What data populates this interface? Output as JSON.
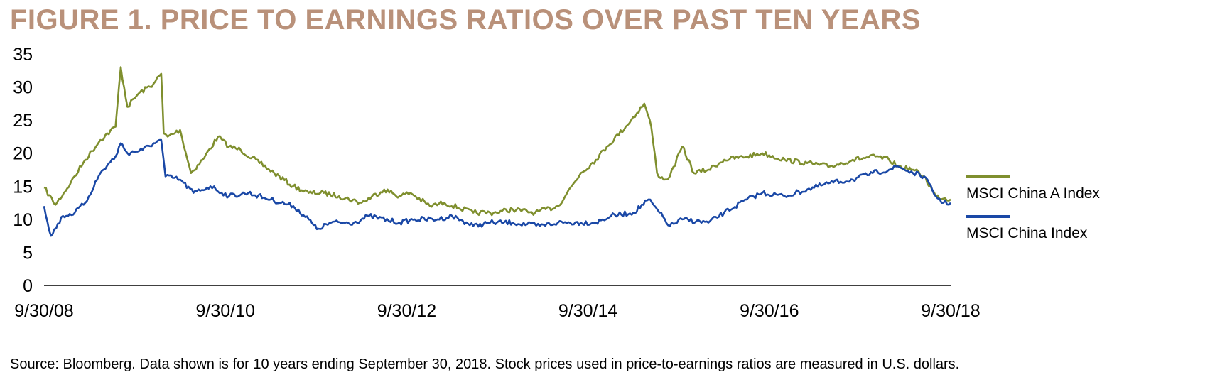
{
  "figure": {
    "title": "FIGURE 1. PRICE TO EARNINGS RATIOS OVER PAST TEN YEARS",
    "title_color": "#B9917A",
    "source_note": "Source: Bloomberg. Data shown is for 10 years ending September 30, 2018. Stock prices used in price-to-earnings ratios are measured in U.S. dollars."
  },
  "chart_data": {
    "type": "line",
    "title": "",
    "xlabel": "",
    "ylabel": "",
    "ylim": [
      0,
      35
    ],
    "xlim": [
      "2008-09-30",
      "2018-09-30"
    ],
    "yticks": [
      0,
      5,
      10,
      15,
      20,
      25,
      30,
      35
    ],
    "xticks": [
      "9/30/08",
      "9/30/10",
      "9/30/12",
      "9/30/14",
      "9/30/16",
      "9/30/18"
    ],
    "grid": false,
    "legend_position": "right",
    "series": [
      {
        "name": "MSCI China A Index",
        "color": "#7F8F2E",
        "x": [
          "2008-09-30",
          "2008-11-15",
          "2009-01-15",
          "2009-03-15",
          "2009-05-15",
          "2009-07-15",
          "2009-08-05",
          "2009-09-01",
          "2009-10-15",
          "2009-12-15",
          "2010-01-15",
          "2010-01-25",
          "2010-02-10",
          "2010-04-01",
          "2010-05-15",
          "2010-07-01",
          "2010-09-01",
          "2010-10-15",
          "2010-12-01",
          "2011-02-15",
          "2011-04-15",
          "2011-06-30",
          "2011-09-01",
          "2011-11-01",
          "2012-01-01",
          "2012-04-01",
          "2012-07-01",
          "2012-09-01",
          "2012-10-15",
          "2013-01-01",
          "2013-03-01",
          "2013-06-25",
          "2013-09-15",
          "2013-12-01",
          "2014-03-01",
          "2014-06-01",
          "2014-09-01",
          "2014-11-01",
          "2014-12-15",
          "2015-03-01",
          "2015-05-15",
          "2015-06-12",
          "2015-07-05",
          "2015-08-01",
          "2015-08-26",
          "2015-10-15",
          "2015-12-01",
          "2016-01-28",
          "2016-04-01",
          "2016-07-01",
          "2016-09-01",
          "2016-12-01",
          "2017-03-01",
          "2017-06-01",
          "2017-09-01",
          "2017-12-01",
          "2018-01-25",
          "2018-03-01",
          "2018-05-01",
          "2018-06-15",
          "2018-08-01",
          "2018-09-30"
        ],
        "values": [
          14.8,
          12.2,
          15.5,
          19.0,
          22.0,
          24.0,
          33.0,
          27.0,
          29.0,
          30.5,
          32.0,
          23.0,
          22.5,
          23.5,
          17.0,
          19.0,
          22.5,
          21.0,
          20.5,
          18.5,
          17.0,
          15.0,
          14.0,
          14.0,
          13.5,
          12.5,
          14.5,
          13.5,
          14.0,
          12.0,
          12.5,
          11.0,
          11.0,
          11.5,
          11.0,
          12.0,
          17.0,
          19.0,
          21.0,
          24.0,
          27.5,
          24.0,
          17.0,
          16.0,
          16.5,
          21.0,
          17.0,
          17.5,
          19.0,
          19.5,
          20.0,
          19.0,
          18.5,
          18.0,
          19.0,
          19.5,
          19.0,
          18.0,
          17.5,
          16.5,
          13.5,
          13.0
        ]
      },
      {
        "name": "MSCI China Index",
        "color": "#1A48A6",
        "x": [
          "2008-09-30",
          "2008-10-28",
          "2008-12-15",
          "2009-02-01",
          "2009-03-15",
          "2009-05-15",
          "2009-07-15",
          "2009-08-05",
          "2009-09-01",
          "2009-11-01",
          "2009-12-15",
          "2010-01-15",
          "2010-02-01",
          "2010-04-01",
          "2010-05-25",
          "2010-08-01",
          "2010-10-15",
          "2011-01-01",
          "2011-04-01",
          "2011-07-01",
          "2011-09-01",
          "2011-10-04",
          "2011-12-01",
          "2012-03-01",
          "2012-05-01",
          "2012-09-01",
          "2012-11-01",
          "2013-02-01",
          "2013-04-01",
          "2013-06-25",
          "2013-09-01",
          "2013-12-01",
          "2014-03-20",
          "2014-06-01",
          "2014-09-01",
          "2014-11-01",
          "2015-01-01",
          "2015-04-01",
          "2015-06-01",
          "2015-07-15",
          "2015-08-26",
          "2015-10-15",
          "2016-01-28",
          "2016-04-01",
          "2016-07-01",
          "2016-09-01",
          "2016-12-01",
          "2017-03-01",
          "2017-06-01",
          "2017-09-01",
          "2017-11-20",
          "2018-01-25",
          "2018-03-01",
          "2018-05-01",
          "2018-06-15",
          "2018-08-01",
          "2018-09-01",
          "2018-09-30"
        ],
        "values": [
          12.0,
          7.5,
          10.5,
          11.0,
          12.5,
          17.0,
          19.5,
          21.5,
          20.0,
          20.5,
          21.5,
          22.0,
          16.5,
          16.0,
          14.0,
          15.0,
          13.5,
          14.0,
          13.0,
          12.0,
          10.0,
          8.5,
          9.5,
          9.5,
          10.5,
          9.5,
          10.0,
          10.0,
          10.5,
          9.0,
          9.5,
          9.5,
          9.0,
          9.5,
          9.5,
          9.5,
          10.5,
          11.0,
          13.0,
          11.0,
          9.0,
          10.0,
          9.5,
          11.0,
          13.0,
          14.0,
          13.5,
          14.5,
          15.5,
          16.0,
          17.0,
          17.5,
          18.0,
          17.0,
          16.5,
          13.5,
          12.5,
          12.5
        ]
      }
    ]
  }
}
